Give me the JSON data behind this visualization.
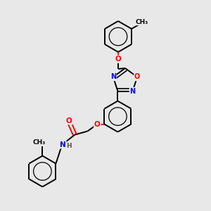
{
  "background_color": "#e8e8e8",
  "bond_color": "#000000",
  "bond_width": 1.4,
  "atom_colors": {
    "O": "#ff0000",
    "N": "#0000ff",
    "C": "#000000",
    "H": "#555555"
  },
  "figsize": [
    3.0,
    3.0
  ],
  "dpi": 100
}
